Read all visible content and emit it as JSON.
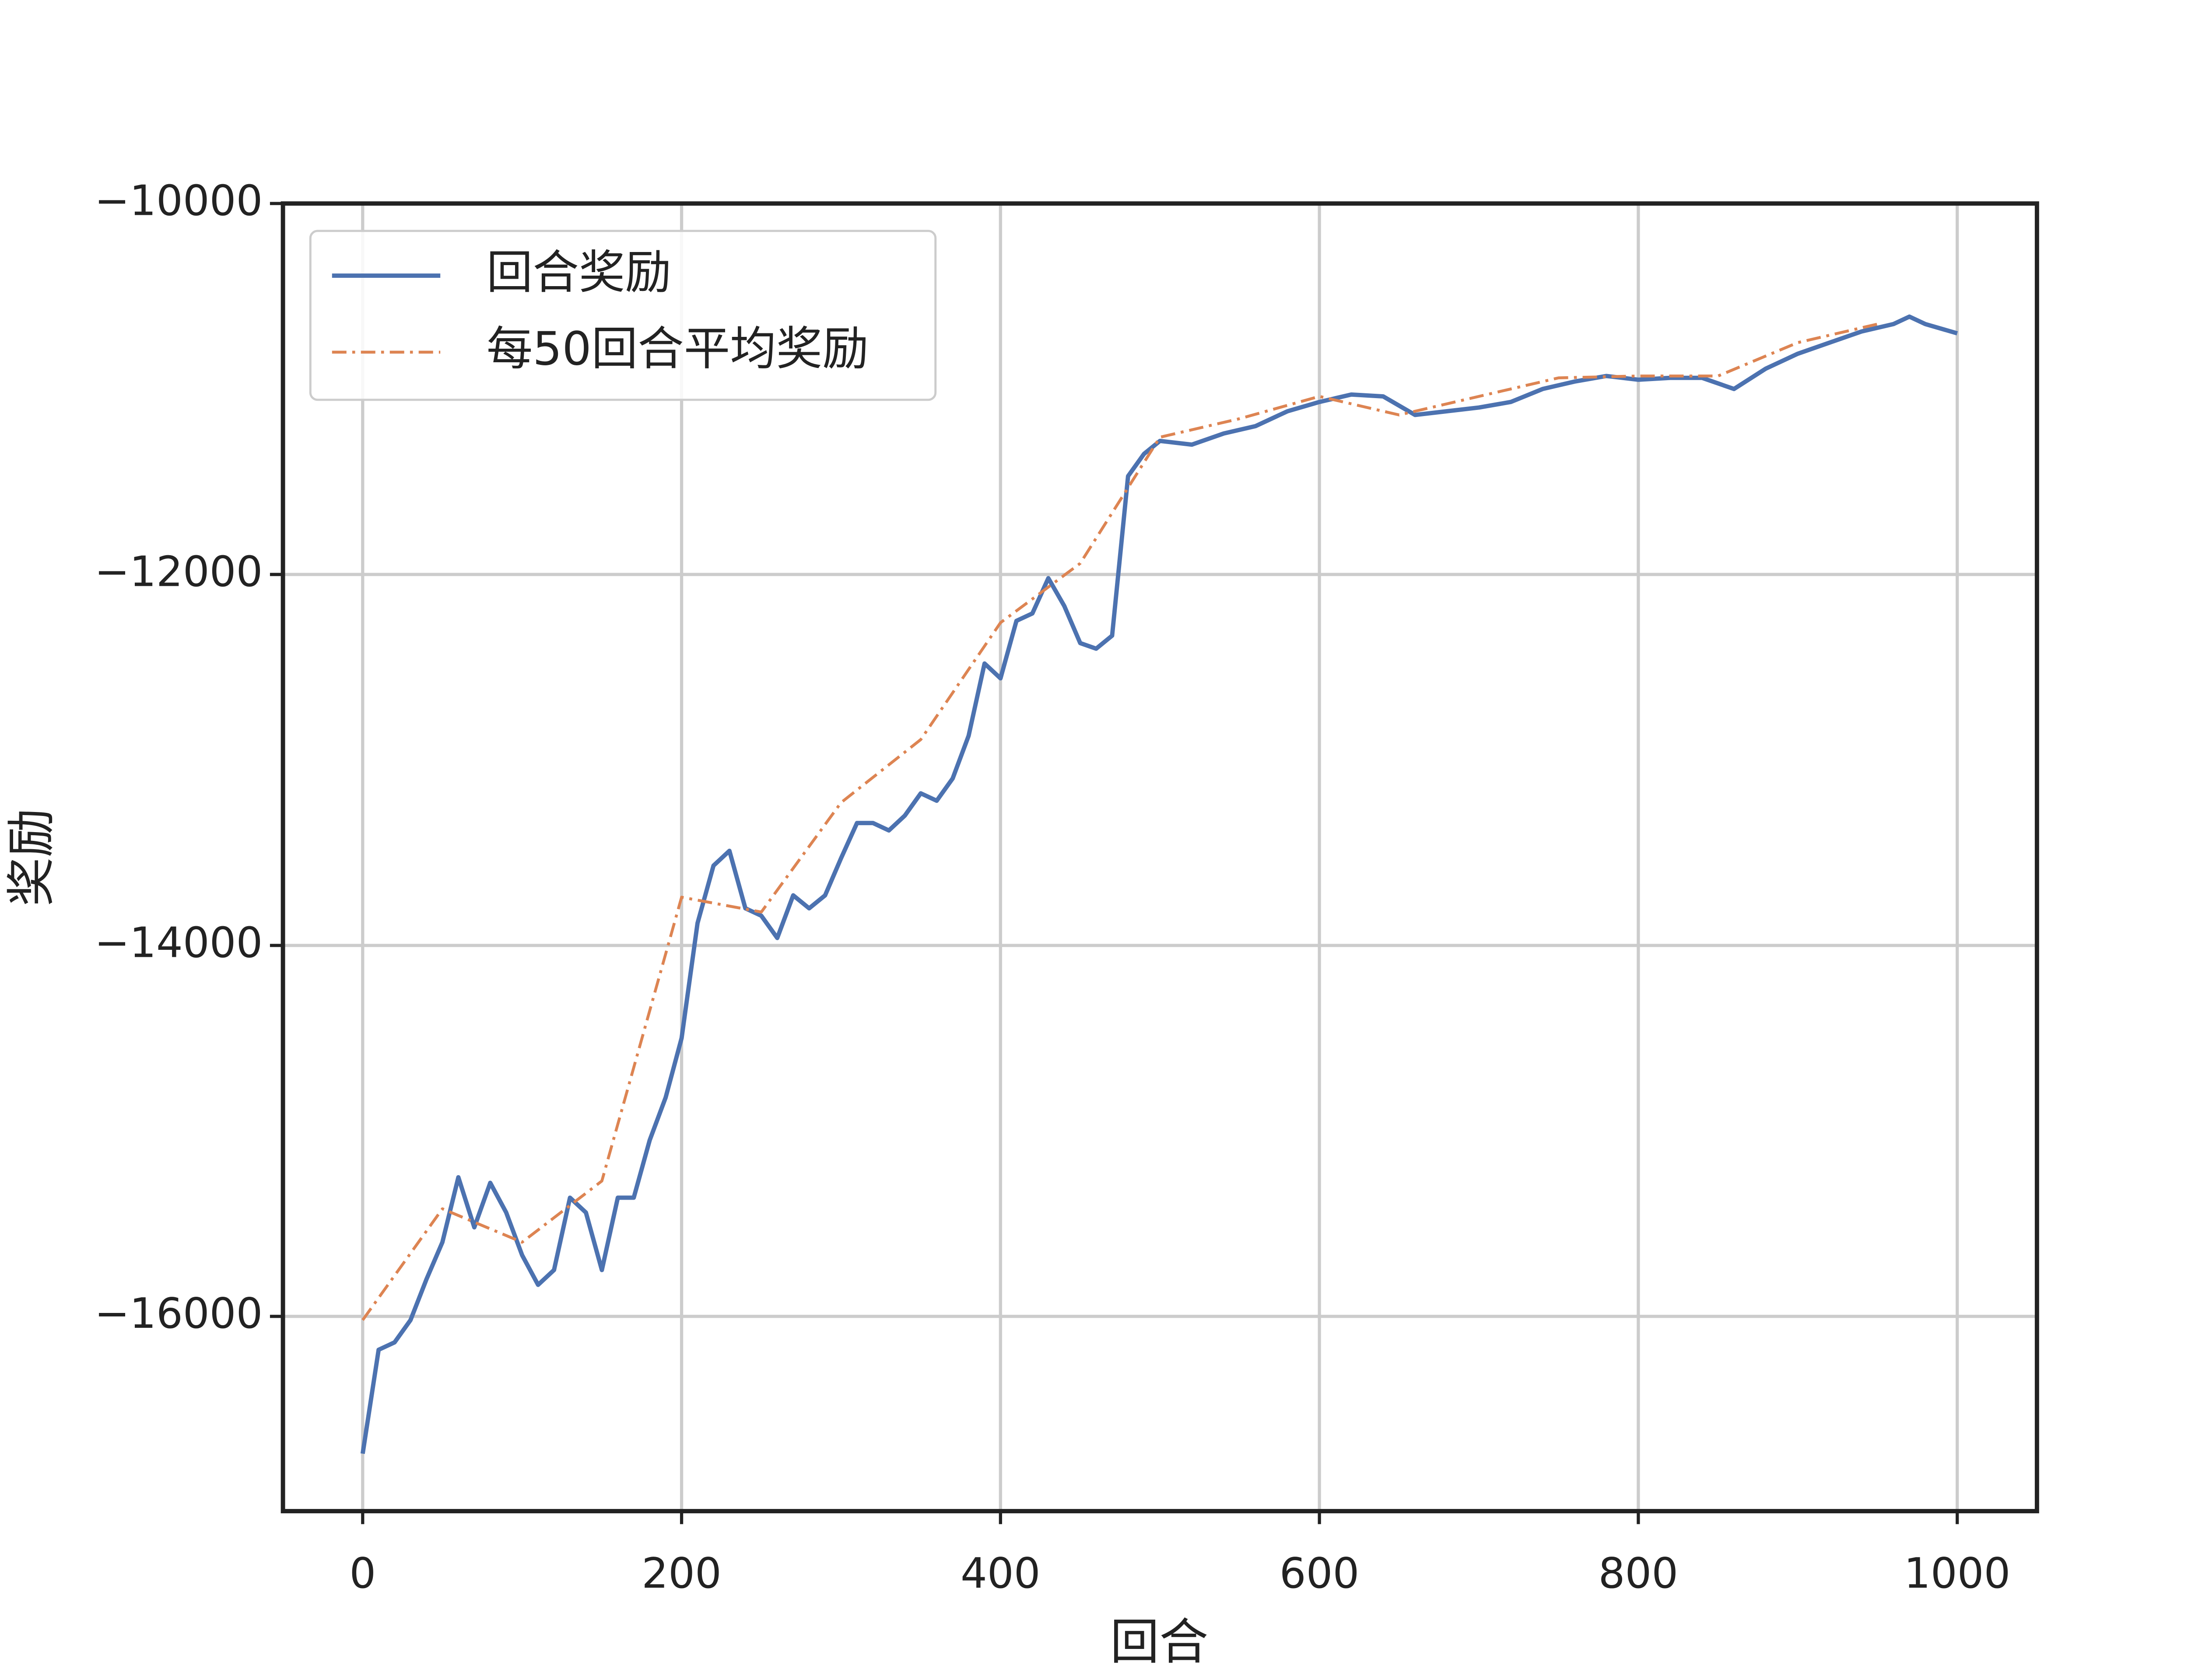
{
  "chart_data": {
    "type": "line",
    "xlabel": "回合",
    "ylabel": "奖励",
    "xlim": [
      -50,
      1050
    ],
    "ylim": [
      -17050,
      -10000
    ],
    "xticks": [
      0,
      200,
      400,
      600,
      800,
      1000
    ],
    "yticks": [
      {
        "value": -10000,
        "label": "−10000"
      },
      {
        "value": -12000,
        "label": "−12000"
      },
      {
        "value": -14000,
        "label": "−14000"
      },
      {
        "value": -16000,
        "label": "−16000"
      }
    ],
    "grid": true,
    "legend": "upper left",
    "series": [
      {
        "name": "回合奖励",
        "color": "#4c72b0",
        "style": "solid",
        "x": [
          0,
          10,
          20,
          30,
          40,
          50,
          60,
          70,
          80,
          90,
          100,
          110,
          120,
          130,
          140,
          150,
          160,
          170,
          180,
          190,
          200,
          210,
          220,
          230,
          240,
          250,
          260,
          270,
          280,
          290,
          300,
          310,
          320,
          330,
          340,
          350,
          360,
          370,
          380,
          390,
          400,
          410,
          420,
          430,
          440,
          450,
          460,
          470,
          480,
          490,
          500,
          520,
          540,
          560,
          580,
          600,
          620,
          640,
          660,
          680,
          700,
          720,
          740,
          760,
          780,
          800,
          820,
          840,
          860,
          880,
          900,
          920,
          940,
          960,
          970,
          980,
          1000
        ],
        "values": [
          -16740,
          -16180,
          -16140,
          -16020,
          -15800,
          -15600,
          -15250,
          -15520,
          -15280,
          -15440,
          -15670,
          -15830,
          -15750,
          -15360,
          -15440,
          -15750,
          -15360,
          -15360,
          -15050,
          -14820,
          -14500,
          -13880,
          -13570,
          -13490,
          -13800,
          -13840,
          -13960,
          -13730,
          -13800,
          -13730,
          -13530,
          -13340,
          -13340,
          -13380,
          -13300,
          -13180,
          -13220,
          -13100,
          -12870,
          -12480,
          -12560,
          -12250,
          -12210,
          -12020,
          -12170,
          -12370,
          -12400,
          -12330,
          -11470,
          -11350,
          -11280,
          -11300,
          -11240,
          -11200,
          -11120,
          -11070,
          -11030,
          -11040,
          -11140,
          -11120,
          -11100,
          -11070,
          -11000,
          -10960,
          -10930,
          -10950,
          -10940,
          -10940,
          -11000,
          -10890,
          -10810,
          -10750,
          -10690,
          -10650,
          -10610,
          -10650,
          -10700
        ]
      },
      {
        "name": "每50回合平均奖励",
        "color": "#dd8452",
        "style": "dashdot",
        "x": [
          0,
          50,
          100,
          150,
          200,
          250,
          300,
          350,
          400,
          450,
          500,
          550,
          600,
          650,
          700,
          750,
          800,
          850,
          900,
          950
        ],
        "values": [
          -16020,
          -15420,
          -15600,
          -15270,
          -13740,
          -13820,
          -13230,
          -12890,
          -12260,
          -11940,
          -11260,
          -11160,
          -11040,
          -11140,
          -11040,
          -10940,
          -10930,
          -10930,
          -10750,
          -10650
        ]
      }
    ]
  }
}
